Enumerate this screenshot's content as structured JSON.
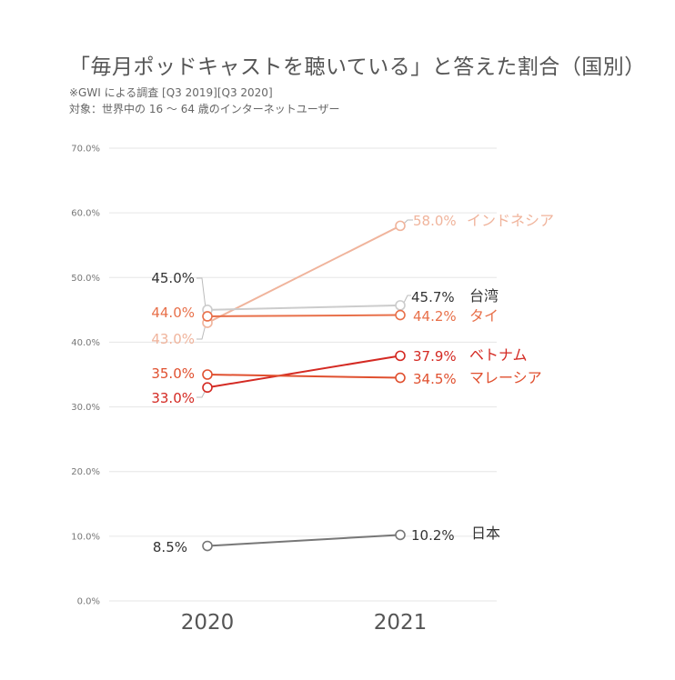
{
  "title": "「毎月ポッドキャストを聴いている」と答えた割合（国別）",
  "notes": [
    "※GWI による調査 [Q3 2019][Q3 2020]",
    "対象：世界中の 16 〜 64 歳のインターネットユーザー"
  ],
  "chart_data": {
    "type": "line",
    "x": [
      "2020",
      "2021"
    ],
    "ylim": [
      0,
      70
    ],
    "yticks": [
      "0.0%",
      "10.0%",
      "20.0%",
      "30.0%",
      "40.0%",
      "50.0%",
      "60.0%",
      "70.0%"
    ],
    "grid": true,
    "legend": "none (series labelled at line ends)",
    "series": [
      {
        "name": "インドネシア",
        "values": [
          43.0,
          58.0
        ],
        "labels": [
          "43.0%",
          "58.0%"
        ],
        "color": "#f0b49c"
      },
      {
        "name": "台湾",
        "values": [
          45.0,
          45.7
        ],
        "labels": [
          "45.0%",
          "45.7%"
        ],
        "color": "#cccccc"
      },
      {
        "name": "タイ",
        "values": [
          44.0,
          44.2
        ],
        "labels": [
          "44.0%",
          "44.2%"
        ],
        "color": "#e8704a"
      },
      {
        "name": "ベトナム",
        "values": [
          33.0,
          37.9
        ],
        "labels": [
          "33.0%",
          "37.9%"
        ],
        "color": "#d42a23"
      },
      {
        "name": "マレーシア",
        "values": [
          35.0,
          34.5
        ],
        "labels": [
          "35.0%",
          "34.5%"
        ],
        "color": "#e0502f"
      },
      {
        "name": "日本",
        "values": [
          8.5,
          10.2
        ],
        "labels": [
          "8.5%",
          "10.2%"
        ],
        "color": "#777777"
      }
    ]
  }
}
